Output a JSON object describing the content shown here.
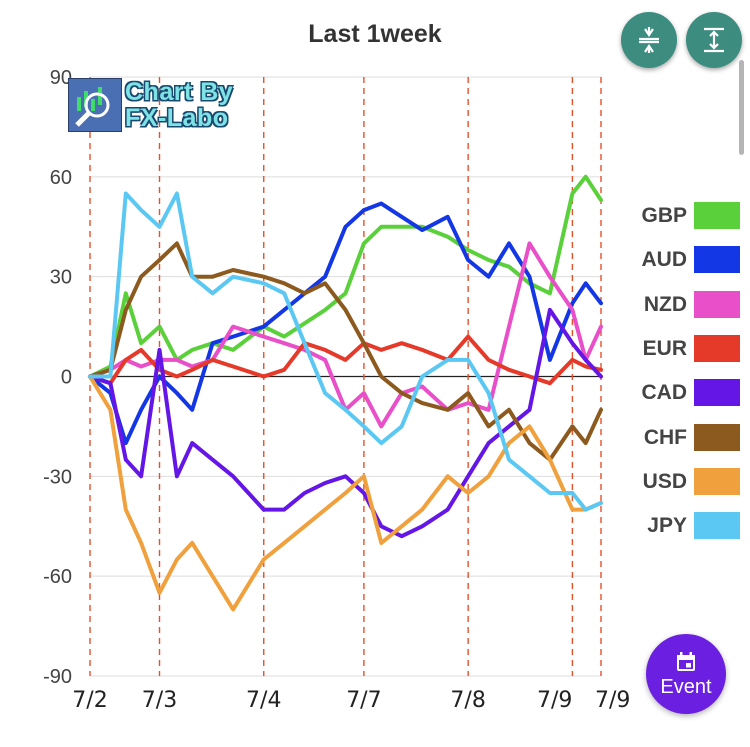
{
  "chart_data": {
    "type": "line",
    "title": "Last 1week",
    "xlabel": "",
    "ylabel": "",
    "ylim": [
      -90,
      90
    ],
    "yticks": [
      90,
      60,
      30,
      0,
      -30,
      -60,
      -90
    ],
    "grid": true,
    "legend_position": "right",
    "date_labels": [
      "7/2",
      "7/3",
      "7/4",
      "7/7",
      "7/8",
      "7/9",
      "7/9"
    ],
    "date_markers": [
      0,
      0.136,
      0.34,
      0.536,
      0.74,
      0.944,
      1.0
    ],
    "x": [
      0,
      0.04,
      0.07,
      0.1,
      0.136,
      0.17,
      0.2,
      0.24,
      0.28,
      0.34,
      0.38,
      0.42,
      0.46,
      0.5,
      0.536,
      0.57,
      0.61,
      0.65,
      0.7,
      0.74,
      0.78,
      0.82,
      0.86,
      0.9,
      0.944,
      0.97,
      1.0
    ],
    "series": [
      {
        "name": "GBP",
        "color": "#5ad03a",
        "values": [
          0,
          3,
          25,
          10,
          15,
          5,
          8,
          10,
          8,
          15,
          12,
          16,
          20,
          25,
          40,
          45,
          45,
          45,
          42,
          38,
          35,
          33,
          28,
          25,
          55,
          60,
          53
        ]
      },
      {
        "name": "AUD",
        "color": "#1437e6",
        "values": [
          0,
          -5,
          -20,
          -10,
          0,
          -5,
          -10,
          10,
          12,
          15,
          20,
          25,
          30,
          45,
          50,
          52,
          48,
          44,
          48,
          35,
          30,
          40,
          30,
          5,
          22,
          28,
          22
        ]
      },
      {
        "name": "NZD",
        "color": "#e84fc8",
        "values": [
          0,
          2,
          5,
          3,
          5,
          5,
          3,
          5,
          15,
          12,
          10,
          8,
          5,
          -10,
          -5,
          -15,
          -5,
          -3,
          -10,
          -8,
          -10,
          15,
          40,
          30,
          20,
          5,
          15
        ]
      },
      {
        "name": "EUR",
        "color": "#e53a2a",
        "values": [
          0,
          -2,
          5,
          8,
          2,
          0,
          2,
          5,
          3,
          0,
          2,
          10,
          8,
          5,
          10,
          8,
          10,
          8,
          5,
          12,
          5,
          2,
          0,
          -2,
          5,
          3,
          2
        ]
      },
      {
        "name": "CAD",
        "color": "#6416e6",
        "values": [
          0,
          -2,
          -25,
          -30,
          8,
          -30,
          -20,
          -25,
          -30,
          -40,
          -40,
          -35,
          -32,
          -30,
          -35,
          -45,
          -48,
          -45,
          -40,
          -30,
          -20,
          -15,
          -10,
          20,
          10,
          5,
          0
        ]
      },
      {
        "name": "CHF",
        "color": "#8c5a1e",
        "values": [
          0,
          2,
          20,
          30,
          35,
          40,
          30,
          30,
          32,
          30,
          28,
          25,
          28,
          20,
          10,
          0,
          -5,
          -8,
          -10,
          -5,
          -15,
          -10,
          -20,
          -25,
          -15,
          -20,
          -10
        ]
      },
      {
        "name": "USD",
        "color": "#f0a03c",
        "values": [
          0,
          -10,
          -40,
          -50,
          -65,
          -55,
          -50,
          -60,
          -70,
          -55,
          -50,
          -45,
          -40,
          -35,
          -30,
          -50,
          -45,
          -40,
          -30,
          -35,
          -30,
          -20,
          -15,
          -25,
          -40,
          -40,
          -38
        ]
      },
      {
        "name": "JPY",
        "color": "#5ac8f2",
        "values": [
          0,
          0,
          55,
          50,
          45,
          55,
          30,
          25,
          30,
          28,
          25,
          10,
          -5,
          -10,
          -15,
          -20,
          -15,
          0,
          5,
          5,
          -5,
          -25,
          -30,
          -35,
          -35,
          -40,
          -38
        ]
      }
    ]
  },
  "logo": {
    "line1": "Chart By",
    "line2": "FX-Labo"
  },
  "event_button": {
    "label": "Event"
  },
  "icons": {
    "shrink": "compress-vertical-icon",
    "expand": "expand-vertical-icon",
    "event": "calendar-icon"
  },
  "colors": {
    "fab": "#3d8c80",
    "event": "#6b1fe0",
    "marker": "#e8502a"
  }
}
